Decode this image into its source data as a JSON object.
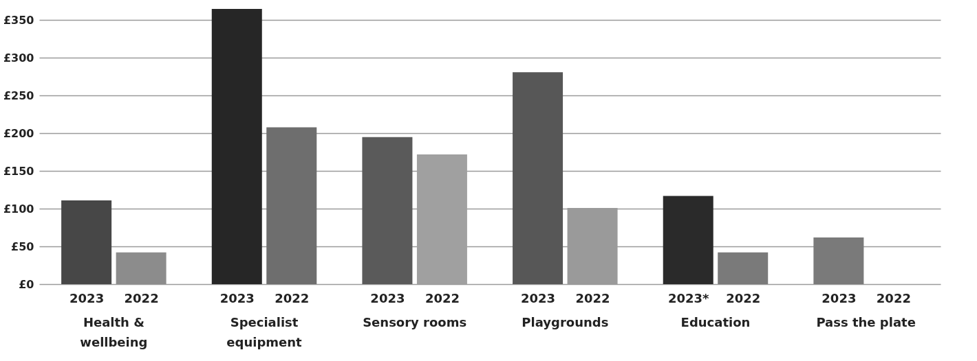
{
  "chart_data": {
    "type": "bar",
    "categories": [
      "2023",
      "2022",
      "2023",
      "2022",
      "2023",
      "2022",
      "2023",
      "2022",
      "2023*",
      "2022",
      "2023",
      "2022"
    ],
    "values": [
      111,
      42,
      365,
      208,
      195,
      172,
      281,
      101,
      117,
      42,
      62,
      null
    ],
    "colors": [
      "#474747",
      "#8c8c8c",
      "#262626",
      "#6e6e6e",
      "#5a5a5a",
      "#a0a0a0",
      "#575757",
      "#9a9a9a",
      "#2a2a2a",
      "#7a7a7a",
      "#7a7a7a",
      "#7a7a7a"
    ],
    "annotations": [
      "Health & wellbeing",
      "Specialist equipment",
      "Sensory rooms",
      "Playgrounds",
      "Education",
      "Pass the plate"
    ],
    "ylim": [
      0,
      365
    ],
    "yticks": [
      {
        "value": 0,
        "label": "£0"
      },
      {
        "value": 50,
        "label": "£50"
      },
      {
        "value": 100,
        "label": "£100"
      },
      {
        "value": 150,
        "label": "£150"
      },
      {
        "value": 200,
        "label": "£200"
      },
      {
        "value": 250,
        "label": "£250"
      },
      {
        "value": 300,
        "label": "£300"
      },
      {
        "value": 350,
        "label": "£350"
      }
    ],
    "grid": "y"
  }
}
